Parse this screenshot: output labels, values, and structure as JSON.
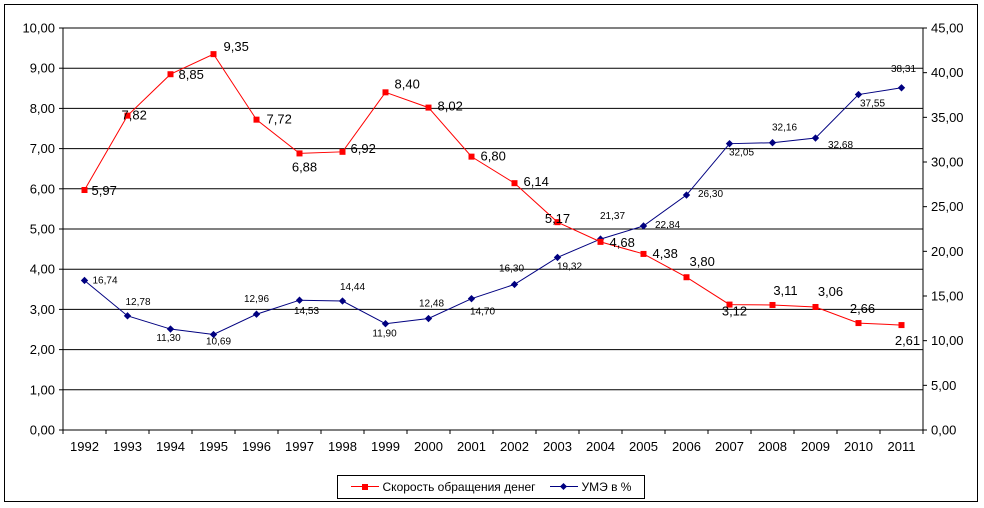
{
  "chart_data": {
    "type": "line",
    "categories": [
      "1992",
      "1993",
      "1994",
      "1995",
      "1996",
      "1997",
      "1998",
      "1999",
      "2000",
      "2001",
      "2002",
      "2003",
      "2004",
      "2005",
      "2006",
      "2007",
      "2008",
      "2009",
      "2010",
      "2011"
    ],
    "series": [
      {
        "name": "Скорость обращения денег",
        "axis": "left",
        "color": "#ff0000",
        "marker": "square",
        "values": [
          5.97,
          7.82,
          8.85,
          9.35,
          7.72,
          6.88,
          6.92,
          8.4,
          8.02,
          6.8,
          6.14,
          5.17,
          4.68,
          4.38,
          3.8,
          3.12,
          3.11,
          3.06,
          2.66,
          2.61
        ],
        "labels": [
          "5,97",
          "7,82",
          "8,85",
          "9,35",
          "7,72",
          "6,88",
          "6,92",
          "8,40",
          "8,02",
          "6,80",
          "6,14",
          "5,17",
          "4,68",
          "4,38",
          "3,80",
          "3,12",
          "3,11",
          "3,06",
          "2,66",
          "2,61"
        ]
      },
      {
        "name": "УМЭ в %",
        "axis": "right",
        "color": "#000080",
        "marker": "diamond",
        "values": [
          16.74,
          12.78,
          11.3,
          10.69,
          12.96,
          14.53,
          14.44,
          11.9,
          12.48,
          14.7,
          16.3,
          19.32,
          21.37,
          22.84,
          26.3,
          32.05,
          32.16,
          32.68,
          37.55,
          38.31
        ],
        "labels": [
          "16,74",
          "12,78",
          "11,30",
          "10,69",
          "12,96",
          "14,53",
          "14,44",
          "11,90",
          "12,48",
          "14,70",
          "16,30",
          "19,32",
          "21,37",
          "22,84",
          "26,30",
          "32,05",
          "32,16",
          "32,68",
          "37,55",
          "38,31"
        ]
      }
    ],
    "y_left": {
      "min": 0,
      "max": 10,
      "step": 1,
      "ticks": [
        "0,00",
        "1,00",
        "2,00",
        "3,00",
        "4,00",
        "5,00",
        "6,00",
        "7,00",
        "8,00",
        "9,00",
        "10,00"
      ]
    },
    "y_right": {
      "min": 0,
      "max": 45,
      "step": 5,
      "ticks": [
        "0,00",
        "5,00",
        "10,00",
        "15,00",
        "20,00",
        "25,00",
        "30,00",
        "35,00",
        "40,00",
        "45,00"
      ]
    },
    "title": "",
    "xlabel": "",
    "ylabel": "",
    "grid": true,
    "legend": "bottom"
  },
  "legend": {
    "items": [
      {
        "label": "Скорость обращения денег",
        "color": "#ff0000",
        "marker": "square"
      },
      {
        "label": "УМЭ в %",
        "color": "#000080",
        "marker": "diamond"
      }
    ]
  }
}
